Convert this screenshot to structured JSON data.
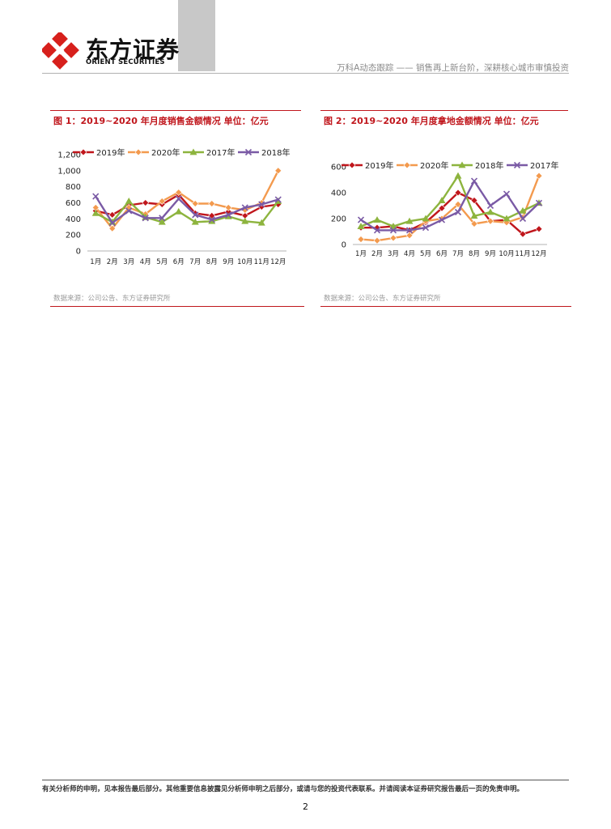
{
  "header": {
    "logo_cn": "东方证券",
    "logo_en": "ORIENT SECURITIES",
    "report_title": "万科A动态跟踪 —— 销售再上新台阶，深耕核心城市审慎投资"
  },
  "figures": [
    {
      "title": "图 1：2019~2020 年月度销售金额情况  单位：亿元",
      "source": "数据来源：公司公告、东方证券研究所"
    },
    {
      "title": "图 2：2019~2020 年月度拿地金额情况  单位：亿元",
      "source": "数据来源：公司公告、东方证券研究所"
    }
  ],
  "chart_data": [
    {
      "type": "line",
      "categories": [
        "1月",
        "2月",
        "3月",
        "4月",
        "5月",
        "6月",
        "7月",
        "8月",
        "9月",
        "10月",
        "11月",
        "12月"
      ],
      "ylim": [
        0,
        1200
      ],
      "yticks": [
        0,
        200,
        400,
        600,
        800,
        1000,
        1200
      ],
      "ytick_labels": [
        "0",
        "200",
        "400",
        "600",
        "800",
        "1,000",
        "1,200"
      ],
      "legend_position": "top",
      "series": [
        {
          "name": "2019年",
          "color": "#c0161c",
          "marker": "diamond",
          "values": [
            500,
            450,
            570,
            600,
            580,
            700,
            470,
            440,
            490,
            440,
            550,
            580
          ]
        },
        {
          "name": "2020年",
          "color": "#f39a4e",
          "marker": "diamond",
          "values": [
            540,
            280,
            540,
            460,
            620,
            730,
            590,
            590,
            540,
            510,
            600,
            1000
          ]
        },
        {
          "name": "2017年",
          "color": "#8db43e",
          "marker": "triangle",
          "values": [
            470,
            360,
            620,
            420,
            360,
            490,
            360,
            370,
            430,
            370,
            350,
            620
          ]
        },
        {
          "name": "2018年",
          "color": "#7a5aa5",
          "marker": "x",
          "values": [
            680,
            350,
            500,
            410,
            410,
            650,
            450,
            390,
            450,
            540,
            580,
            640
          ]
        }
      ]
    },
    {
      "type": "line",
      "categories": [
        "1月",
        "2月",
        "3月",
        "4月",
        "5月",
        "6月",
        "7月",
        "8月",
        "9月",
        "10月",
        "11月",
        "12月"
      ],
      "ylim": [
        0,
        600
      ],
      "yticks": [
        0,
        200,
        400,
        600
      ],
      "ytick_labels": [
        "0",
        "200",
        "400",
        "600"
      ],
      "legend_position": "top",
      "series": [
        {
          "name": "2019年",
          "color": "#c0161c",
          "marker": "diamond",
          "values": [
            130,
            130,
            140,
            110,
            170,
            280,
            400,
            340,
            180,
            190,
            80,
            120
          ]
        },
        {
          "name": "2020年",
          "color": "#f39a4e",
          "marker": "diamond",
          "values": [
            40,
            30,
            50,
            70,
            180,
            200,
            310,
            160,
            180,
            170,
            210,
            530
          ]
        },
        {
          "name": "2018年",
          "color": "#8db43e",
          "marker": "triangle",
          "values": [
            140,
            190,
            140,
            180,
            200,
            340,
            530,
            220,
            250,
            200,
            260,
            320
          ]
        },
        {
          "name": "2017年",
          "color": "#7a5aa5",
          "marker": "x",
          "values": [
            190,
            110,
            110,
            110,
            130,
            190,
            250,
            490,
            300,
            390,
            200,
            320
          ]
        }
      ]
    }
  ],
  "footer": {
    "disclaimer": "有关分析师的申明，见本报告最后部分。其他重要信息披露见分析师申明之后部分，或请与您的投资代表联系。并请阅读本证券研究报告最后一页的免责申明。",
    "page_number": "2"
  }
}
